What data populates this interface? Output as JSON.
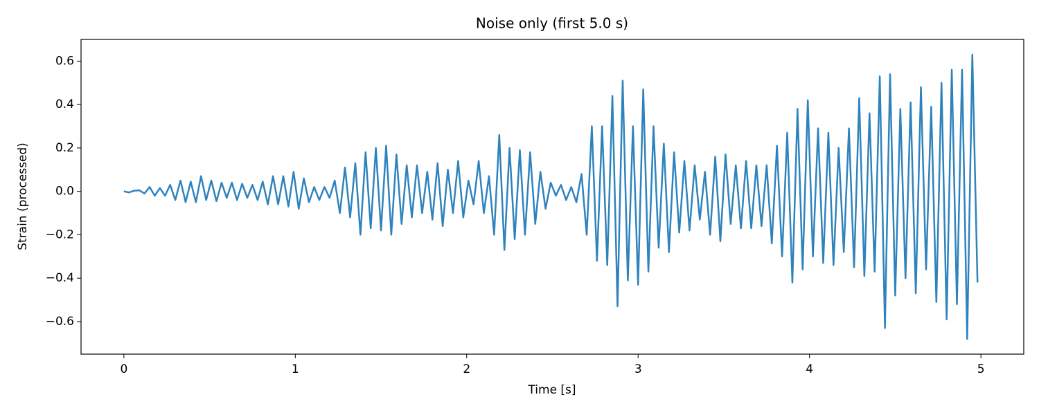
{
  "chart_data": {
    "type": "line",
    "title": "Noise only (first 5.0 s)",
    "x_label": "Time [s]",
    "y_label": "Strain (processed)",
    "x": [
      0,
      0.03,
      0.06,
      0.09,
      0.12,
      0.15,
      0.18,
      0.21,
      0.24,
      0.27,
      0.3,
      0.33,
      0.36,
      0.39,
      0.42,
      0.45,
      0.48,
      0.51,
      0.54,
      0.57,
      0.6,
      0.63,
      0.66,
      0.69,
      0.72,
      0.75,
      0.78,
      0.81,
      0.84,
      0.87,
      0.9,
      0.93,
      0.96,
      0.99,
      1.02,
      1.05,
      1.08,
      1.11,
      1.14,
      1.17,
      1.2,
      1.23,
      1.26,
      1.29,
      1.32,
      1.35,
      1.38,
      1.41,
      1.44,
      1.47,
      1.5,
      1.53,
      1.56,
      1.59,
      1.62,
      1.65,
      1.68,
      1.71,
      1.74,
      1.77,
      1.8,
      1.83,
      1.86,
      1.89,
      1.92,
      1.95,
      1.98,
      2.01,
      2.04,
      2.07,
      2.1,
      2.13,
      2.16,
      2.19,
      2.22,
      2.25,
      2.28,
      2.31,
      2.34,
      2.37,
      2.4,
      2.43,
      2.46,
      2.49,
      2.52,
      2.55,
      2.58,
      2.61,
      2.64,
      2.67,
      2.7,
      2.73,
      2.76,
      2.79,
      2.82,
      2.85,
      2.88,
      2.91,
      2.94,
      2.97,
      3,
      3.03,
      3.06,
      3.09,
      3.12,
      3.15,
      3.18,
      3.21,
      3.24,
      3.27,
      3.3,
      3.33,
      3.36,
      3.39,
      3.42,
      3.45,
      3.48,
      3.51,
      3.54,
      3.57,
      3.6,
      3.63,
      3.66,
      3.69,
      3.72,
      3.75,
      3.78,
      3.81,
      3.84,
      3.87,
      3.9,
      3.93,
      3.96,
      3.99,
      4.02,
      4.05,
      4.08,
      4.11,
      4.14,
      4.17,
      4.2,
      4.23,
      4.26,
      4.29,
      4.32,
      4.35,
      4.38,
      4.41,
      4.44,
      4.47,
      4.5,
      4.53,
      4.56,
      4.59,
      4.62,
      4.65,
      4.68,
      4.71,
      4.74,
      4.77,
      4.8,
      4.83,
      4.86,
      4.89,
      4.92,
      4.95,
      4.98
    ],
    "series": [
      {
        "color": "#2f83bd",
        "values": [
          0,
          -0.005,
          0.003,
          0.005,
          -0.01,
          0.02,
          -0.02,
          0.015,
          -0.02,
          0.03,
          -0.04,
          0.05,
          -0.05,
          0.045,
          -0.05,
          0.07,
          -0.04,
          0.05,
          -0.045,
          0.04,
          -0.03,
          0.04,
          -0.04,
          0.035,
          -0.03,
          0.03,
          -0.04,
          0.045,
          -0.06,
          0.07,
          -0.06,
          0.07,
          -0.07,
          0.09,
          -0.08,
          0.06,
          -0.05,
          0.02,
          -0.04,
          0.02,
          -0.03,
          0.05,
          -0.1,
          0.11,
          -0.12,
          0.13,
          -0.2,
          0.18,
          -0.17,
          0.2,
          -0.18,
          0.21,
          -0.2,
          0.17,
          -0.15,
          0.12,
          -0.12,
          0.12,
          -0.1,
          0.09,
          -0.13,
          0.13,
          -0.16,
          0.1,
          -0.1,
          0.14,
          -0.12,
          0.05,
          -0.06,
          0.14,
          -0.1,
          0.07,
          -0.2,
          0.26,
          -0.27,
          0.2,
          -0.22,
          0.19,
          -0.2,
          0.18,
          -0.15,
          0.09,
          -0.08,
          0.04,
          -0.02,
          0.03,
          -0.04,
          0.02,
          -0.05,
          0.08,
          -0.2,
          0.3,
          -0.32,
          0.3,
          -0.34,
          0.44,
          -0.53,
          0.51,
          -0.41,
          0.3,
          -0.43,
          0.47,
          -0.37,
          0.3,
          -0.26,
          0.22,
          -0.28,
          0.18,
          -0.19,
          0.14,
          -0.18,
          0.12,
          -0.13,
          0.09,
          -0.2,
          0.16,
          -0.23,
          0.17,
          -0.15,
          0.12,
          -0.17,
          0.14,
          -0.17,
          0.12,
          -0.16,
          0.12,
          -0.24,
          0.21,
          -0.3,
          0.27,
          -0.42,
          0.38,
          -0.36,
          0.42,
          -0.3,
          0.29,
          -0.33,
          0.27,
          -0.34,
          0.2,
          -0.28,
          0.29,
          -0.35,
          0.43,
          -0.39,
          0.36,
          -0.37,
          0.53,
          -0.63,
          0.54,
          -0.48,
          0.38,
          -0.4,
          0.41,
          -0.47,
          0.48,
          -0.36,
          0.39,
          -0.51,
          0.5,
          -0.59,
          0.56,
          -0.52,
          0.56,
          -0.68,
          0.63,
          -0.42
        ]
      }
    ],
    "xlim": [
      -0.25,
      5.25
    ],
    "xticks": [
      0,
      1,
      2,
      3,
      4,
      5
    ],
    "ylim": [
      -0.75,
      0.7
    ],
    "yticks": [
      {
        "value": -0.6,
        "label": "−0.6"
      },
      {
        "value": -0.4,
        "label": "−0.4"
      },
      {
        "value": -0.2,
        "label": "−0.2"
      },
      {
        "value": 0,
        "label": "0.0"
      },
      0.2,
      0.4,
      0.6
    ]
  }
}
